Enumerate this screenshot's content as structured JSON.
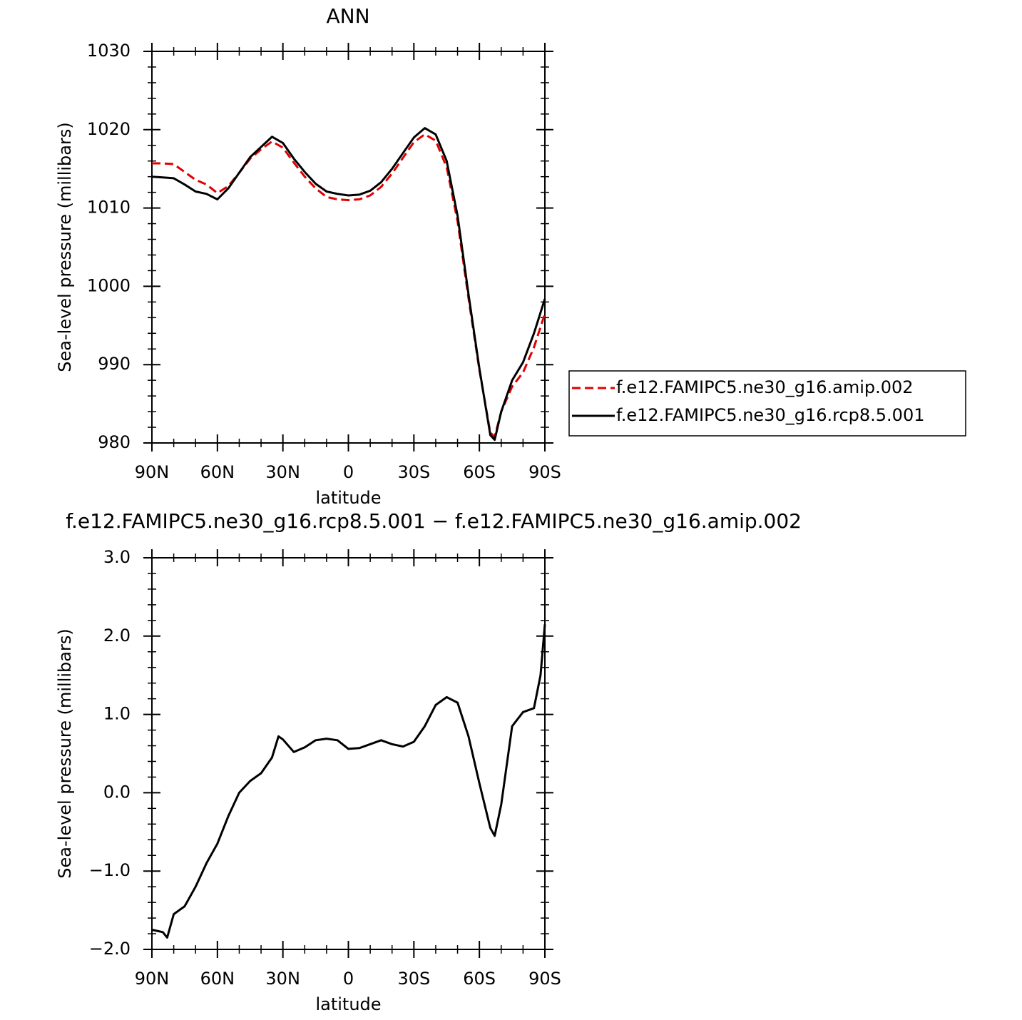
{
  "chart_data": [
    {
      "type": "line",
      "title": "ANN",
      "xlabel": "latitude",
      "ylabel": "Sea-level pressure (millibars)",
      "x": [
        90,
        85,
        80,
        75,
        70,
        65,
        60,
        55,
        50,
        45,
        40,
        35,
        30,
        25,
        20,
        15,
        10,
        5,
        0,
        -5,
        -10,
        -15,
        -20,
        -25,
        -30,
        -35,
        -40,
        -45,
        -50,
        -55,
        -60,
        -65,
        -67,
        -70,
        -75,
        -80,
        -85,
        -90
      ],
      "series": [
        {
          "name": "f.e12.FAMIPC5.ne30_g16.amip.002",
          "color": "#e00000",
          "dash": true,
          "values": [
            1015.7,
            1015.7,
            1015.6,
            1014.6,
            1013.6,
            1013.0,
            1011.9,
            1012.8,
            1014.5,
            1016.3,
            1017.5,
            1018.5,
            1017.7,
            1015.8,
            1014.0,
            1012.5,
            1011.4,
            1011.1,
            1011.0,
            1011.1,
            1011.6,
            1012.7,
            1014.4,
            1016.4,
            1018.4,
            1019.4,
            1018.6,
            1015.2,
            1008.3,
            998.5,
            989.3,
            981.3,
            980.8,
            984.0,
            987.2,
            989.0,
            992.2,
            996.5
          ]
        },
        {
          "name": "f.e12.FAMIPC5.ne30_g16.rcp8.5.001",
          "color": "#000000",
          "dash": false,
          "values": [
            1014.0,
            1013.9,
            1013.8,
            1013.0,
            1012.1,
            1011.8,
            1011.1,
            1012.5,
            1014.5,
            1016.5,
            1017.8,
            1019.1,
            1018.3,
            1016.3,
            1014.6,
            1013.1,
            1012.1,
            1011.8,
            1011.6,
            1011.7,
            1012.2,
            1013.3,
            1015.0,
            1017.0,
            1019.0,
            1020.2,
            1019.4,
            1016.0,
            1009.0,
            999.0,
            989.5,
            981.0,
            980.4,
            984.0,
            988.0,
            990.3,
            994.0,
            998.4
          ]
        }
      ],
      "xlim": [
        90,
        -90
      ],
      "xticks": [
        {
          "value": 90,
          "label": "90N"
        },
        {
          "value": 60,
          "label": "60N"
        },
        {
          "value": 30,
          "label": "30N"
        },
        0,
        {
          "value": -30,
          "label": "30S"
        },
        {
          "value": -60,
          "label": "60S"
        },
        {
          "value": -90,
          "label": "90S"
        }
      ],
      "ylim": [
        980,
        1030
      ],
      "yticks": [
        980,
        990,
        1000,
        1010,
        1020,
        1030
      ],
      "legend": "right"
    },
    {
      "type": "line",
      "title": "f.e12.FAMIPC5.ne30_g16.rcp8.5.001 − f.e12.FAMIPC5.ne30_g16.amip.002",
      "xlabel": "latitude",
      "ylabel": "Sea-level pressure (millibars)",
      "x": [
        90,
        85,
        83,
        80,
        75,
        70,
        65,
        60,
        55,
        50,
        45,
        40,
        35,
        32,
        30,
        25,
        20,
        15,
        10,
        5,
        0,
        -5,
        -10,
        -15,
        -20,
        -25,
        -30,
        -35,
        -40,
        -45,
        -50,
        -55,
        -60,
        -65,
        -67,
        -70,
        -75,
        -80,
        -85,
        -88,
        -90
      ],
      "series": [
        {
          "color": "#000000",
          "dash": false,
          "values": [
            -1.75,
            -1.78,
            -1.85,
            -1.55,
            -1.45,
            -1.2,
            -0.9,
            -0.65,
            -0.3,
            0.0,
            0.15,
            0.25,
            0.45,
            0.72,
            0.68,
            0.52,
            0.58,
            0.67,
            0.69,
            0.67,
            0.56,
            0.57,
            0.62,
            0.67,
            0.62,
            0.59,
            0.65,
            0.85,
            1.12,
            1.22,
            1.15,
            0.72,
            0.12,
            -0.45,
            -0.55,
            -0.15,
            0.85,
            1.03,
            1.08,
            1.5,
            2.15
          ]
        }
      ],
      "xlim": [
        90,
        -90
      ],
      "xticks": [
        {
          "value": 90,
          "label": "90N"
        },
        {
          "value": 60,
          "label": "60N"
        },
        {
          "value": 30,
          "label": "30N"
        },
        0,
        {
          "value": -30,
          "label": "30S"
        },
        {
          "value": -60,
          "label": "60S"
        },
        {
          "value": -90,
          "label": "90S"
        }
      ],
      "ylim": [
        -2.0,
        3.0
      ],
      "yticks": [
        {
          "value": -2.0,
          "label": "−2.0"
        },
        {
          "value": -1.0,
          "label": "−1.0"
        },
        {
          "value": 0.0,
          "label": "0.0"
        },
        {
          "value": 1.0,
          "label": "1.0"
        },
        {
          "value": 2.0,
          "label": "2.0"
        },
        {
          "value": 3.0,
          "label": "3.0"
        }
      ]
    }
  ]
}
